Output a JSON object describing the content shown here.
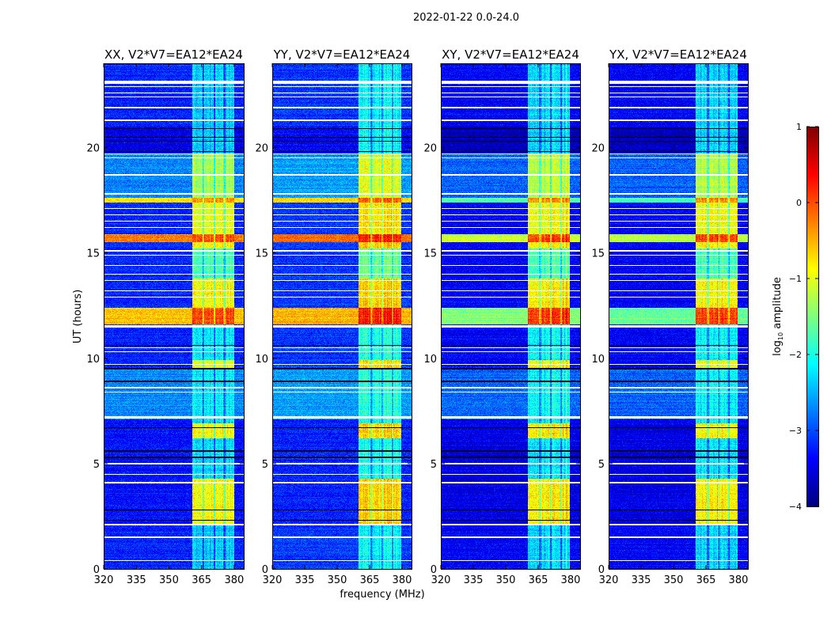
{
  "chart_data": {
    "type": "heatmap",
    "suptitle": "2022-01-22 0.0-24.0",
    "xlabel": "frequency (MHz)",
    "ylabel": "UT (hours)",
    "xlim": [
      320,
      384.4
    ],
    "ylim": [
      0,
      24
    ],
    "xticks": [
      320,
      335,
      350,
      365,
      380
    ],
    "yticks": [
      0,
      5,
      10,
      15,
      20
    ],
    "colorbar": {
      "label_main": "log",
      "label_sub": "10",
      "label_rest": " amplitude",
      "range": [
        -4,
        1
      ],
      "ticks": [
        1,
        0,
        -1,
        -2,
        -3,
        -4
      ],
      "tick_labels": [
        "1",
        "0",
        "−1",
        "−2",
        "−3",
        "−4"
      ],
      "colormap": "jet"
    },
    "panels": [
      {
        "title": "XX, V2*V7=EA12*EA24",
        "bg_offset": 0.0,
        "band_offset": 0.0,
        "strong_bg_offset": 0.0,
        "band": [
          360.7,
          380.0
        ]
      },
      {
        "title": "YY, V2*V7=EA12*EA24",
        "bg_offset": 0.1,
        "band_offset": 0.25,
        "strong_bg_offset": 0.0,
        "band": [
          360.0,
          379.6
        ]
      },
      {
        "title": "XY, V2*V7=EA12*EA24",
        "bg_offset": -0.2,
        "band_offset": 0.1,
        "strong_bg_offset": -0.7,
        "band": [
          360.4,
          379.6
        ]
      },
      {
        "title": "YX, V2*V7=EA12*EA24",
        "bg_offset": -0.2,
        "band_offset": 0.1,
        "strong_bg_offset": -0.8,
        "band": [
          360.4,
          379.6
        ]
      }
    ],
    "subband_gaps_mhz": [
      365.8,
      370.9,
      375.6
    ],
    "segments_hours_bg_band_log10": [
      [
        0,
        2.1,
        -3.2,
        -2.4
      ],
      [
        2.1,
        4.3,
        -3.3,
        -0.9
      ],
      [
        4.3,
        6.2,
        -3.3,
        -2.3
      ],
      [
        6.2,
        6.9,
        -3.3,
        -0.9
      ],
      [
        6.9,
        7.1,
        -3.3,
        -2.3
      ],
      [
        7.1,
        9.5,
        -2.7,
        -2.2
      ],
      [
        9.5,
        9.9,
        -3.2,
        -1.0
      ],
      [
        9.9,
        11.6,
        -3.2,
        -2.2
      ],
      [
        11.6,
        12.4,
        -0.6,
        0.0
      ],
      [
        12.4,
        13.8,
        -3.2,
        -0.9
      ],
      [
        13.8,
        15.2,
        -3.2,
        -1.8
      ],
      [
        15.2,
        15.5,
        -3.2,
        -0.9
      ],
      [
        15.5,
        15.9,
        -0.2,
        0.0
      ],
      [
        15.9,
        17.4,
        -3.2,
        -1.0
      ],
      [
        17.4,
        17.6,
        -0.8,
        -0.4
      ],
      [
        17.6,
        19.7,
        -2.7,
        -1.3
      ],
      [
        19.7,
        21.0,
        -3.5,
        -2.4
      ],
      [
        21.0,
        24,
        -3.2,
        -2.4
      ]
    ],
    "flagged_hours": [
      [
        0.4,
        0.05
      ],
      [
        1.5,
        0.05
      ],
      [
        2.1,
        0.05
      ],
      [
        4.1,
        0.05
      ],
      [
        4.5,
        0.05
      ],
      [
        5.0,
        0.05
      ],
      [
        7.2,
        0.12
      ],
      [
        8.4,
        0.05
      ],
      [
        8.6,
        0.05
      ],
      [
        9.7,
        0.05
      ],
      [
        10.3,
        0.05
      ],
      [
        10.5,
        0.05
      ],
      [
        11.5,
        0.12
      ],
      [
        12.9,
        0.05
      ],
      [
        13.2,
        0.05
      ],
      [
        13.7,
        0.05
      ],
      [
        14.0,
        0.05
      ],
      [
        14.4,
        0.05
      ],
      [
        14.9,
        0.05
      ],
      [
        15.1,
        0.05
      ],
      [
        16.2,
        0.05
      ],
      [
        16.5,
        0.05
      ],
      [
        16.8,
        0.05
      ],
      [
        17.1,
        0.05
      ],
      [
        17.8,
        0.1
      ],
      [
        18.7,
        0.05
      ],
      [
        19.5,
        0.05
      ],
      [
        19.7,
        0.05
      ],
      [
        21.3,
        0.05
      ],
      [
        21.9,
        0.05
      ],
      [
        22.4,
        0.05
      ],
      [
        22.6,
        0.05
      ],
      [
        22.9,
        0.05
      ],
      [
        23.1,
        0.15
      ]
    ],
    "dark_rows_hours": [
      2.3,
      2.8,
      5.3,
      5.6,
      6.7,
      8.9,
      9.5,
      10.6,
      19.8,
      20.3,
      20.5,
      20.9
    ]
  }
}
